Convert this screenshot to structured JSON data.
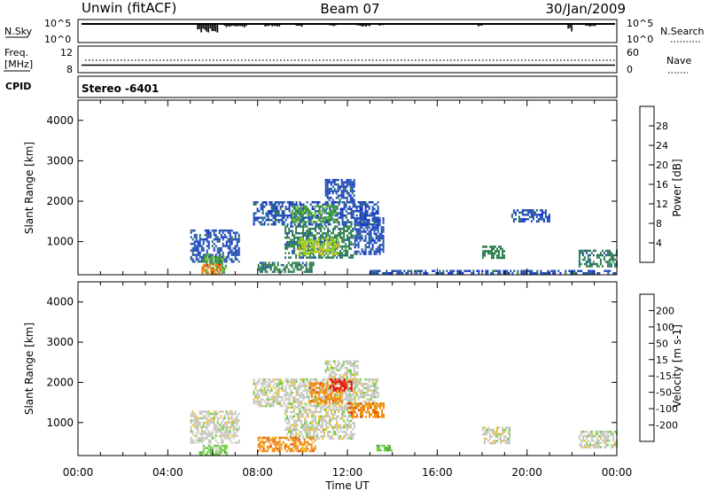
{
  "header": {
    "station": "Unwin (fitACF)",
    "beam": "Beam 07",
    "date": "30/Jan/2009"
  },
  "top_panels": {
    "nsky_label": "N.Sky",
    "nsky_ticks": [
      "10^5",
      "10^0"
    ],
    "nsearch_label": "N.Search",
    "freq_label_1": "Freq.",
    "freq_label_2": "[MHz]",
    "freq_ticks": [
      "12",
      "8"
    ],
    "nave_ticks": [
      "60",
      "0"
    ],
    "nave_label": "Nave",
    "cpid_label": "CPID",
    "cpid_value": "Stereo -6401"
  },
  "colors": {
    "power_scale": [
      "#1020e0",
      "#2050b0",
      "#2a7a50",
      "#40a040",
      "#a0d020",
      "#f0b020",
      "#f07010",
      "#e02010"
    ],
    "velocity_scale": [
      "#2040c0",
      "#1f7a7a",
      "#2d8a40",
      "#66cc33",
      "#c8c8c0",
      "#f0c020",
      "#f08a10",
      "#e84010",
      "#e01010"
    ],
    "ground_scatter": "#c0c0b8"
  },
  "chart_data": [
    {
      "type": "heatmap",
      "name": "power",
      "ylabel": "Slant Range [km]",
      "xlabel": "",
      "y_ticks": [
        1000,
        2000,
        3000,
        4000
      ],
      "ylim": [
        180,
        4500
      ],
      "x_ticks": [
        "00:00",
        "04:00",
        "08:00",
        "12:00",
        "16:00",
        "20:00",
        "00:00"
      ],
      "xlim_hours": [
        0,
        24
      ],
      "colorbar_label": "Power [dB]",
      "colorbar_ticks": [
        "4",
        "8",
        "12",
        "16",
        "20",
        "24",
        "28"
      ],
      "patches": [
        {
          "t0": 5.0,
          "t1": 7.2,
          "r0": 500,
          "r1": 1300,
          "level": 1
        },
        {
          "t0": 5.6,
          "t1": 6.6,
          "r0": 250,
          "r1": 700,
          "level": 3
        },
        {
          "t0": 5.5,
          "t1": 6.3,
          "r0": 200,
          "r1": 450,
          "level": 6
        },
        {
          "t0": 7.8,
          "t1": 13.4,
          "r0": 1400,
          "r1": 2000,
          "level": 1
        },
        {
          "t0": 9.5,
          "t1": 11.5,
          "r0": 1500,
          "r1": 1900,
          "level": 3
        },
        {
          "t0": 11.0,
          "t1": 12.3,
          "r0": 2000,
          "r1": 2550,
          "level": 1
        },
        {
          "t0": 9.2,
          "t1": 12.2,
          "r0": 600,
          "r1": 1400,
          "level": 2
        },
        {
          "t0": 9.8,
          "t1": 11.6,
          "r0": 700,
          "r1": 1100,
          "level": 4
        },
        {
          "t0": 8.0,
          "t1": 10.5,
          "r0": 280,
          "r1": 500,
          "level": 2
        },
        {
          "t0": 12.3,
          "t1": 13.6,
          "r0": 700,
          "r1": 1600,
          "level": 1
        },
        {
          "t0": 13.0,
          "t1": 24.0,
          "r0": 200,
          "r1": 300,
          "level": 1
        },
        {
          "t0": 18.0,
          "t1": 19.0,
          "r0": 600,
          "r1": 900,
          "level": 2
        },
        {
          "t0": 19.3,
          "t1": 21.0,
          "r0": 1500,
          "r1": 1800,
          "level": 1
        },
        {
          "t0": 22.3,
          "t1": 24.0,
          "r0": 400,
          "r1": 800,
          "level": 2
        }
      ]
    },
    {
      "type": "heatmap",
      "name": "velocity",
      "ylabel": "Slant Range [km]",
      "xlabel": "Time UT",
      "y_ticks": [
        1000,
        2000,
        3000,
        4000
      ],
      "ylim": [
        180,
        4500
      ],
      "x_ticks": [
        "00:00",
        "04:00",
        "08:00",
        "12:00",
        "16:00",
        "20:00",
        "00:00"
      ],
      "xlim_hours": [
        0,
        24
      ],
      "colorbar_label": "Velocity [m s-1]",
      "colorbar_ticks": [
        "200",
        "100",
        "50",
        "15",
        "-15",
        "-50",
        "-100",
        "-200"
      ],
      "patches": [
        {
          "t0": 5.0,
          "t1": 7.2,
          "r0": 500,
          "r1": 1300,
          "level": 4
        },
        {
          "t0": 7.8,
          "t1": 13.4,
          "r0": 1400,
          "r1": 2100,
          "level": 4
        },
        {
          "t0": 9.2,
          "t1": 12.3,
          "r0": 600,
          "r1": 1400,
          "level": 4
        },
        {
          "t0": 11.0,
          "t1": 12.5,
          "r0": 2000,
          "r1": 2550,
          "level": 4
        },
        {
          "t0": 10.3,
          "t1": 11.8,
          "r0": 1500,
          "r1": 2000,
          "level": 6
        },
        {
          "t0": 11.2,
          "t1": 12.2,
          "r0": 1800,
          "r1": 2100,
          "level": 8
        },
        {
          "t0": 12.0,
          "t1": 13.6,
          "r0": 1150,
          "r1": 1500,
          "level": 6
        },
        {
          "t0": 8.0,
          "t1": 10.6,
          "r0": 280,
          "r1": 650,
          "level": 6
        },
        {
          "t0": 5.4,
          "t1": 6.6,
          "r0": 200,
          "r1": 450,
          "level": 3
        },
        {
          "t0": 13.3,
          "t1": 14.0,
          "r0": 300,
          "r1": 450,
          "level": 3
        },
        {
          "t0": 18.0,
          "t1": 19.2,
          "r0": 500,
          "r1": 900,
          "level": 4
        },
        {
          "t0": 22.3,
          "t1": 24.0,
          "r0": 400,
          "r1": 800,
          "level": 4
        }
      ]
    }
  ],
  "footer": {
    "xlabel": "Time UT"
  }
}
